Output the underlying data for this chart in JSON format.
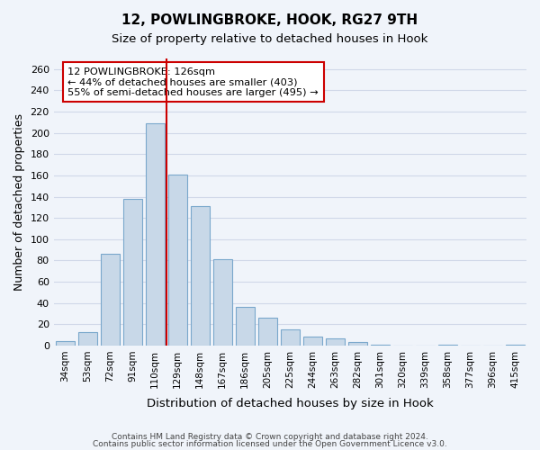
{
  "title": "12, POWLINGBROKE, HOOK, RG27 9TH",
  "subtitle": "Size of property relative to detached houses in Hook",
  "xlabel": "Distribution of detached houses by size in Hook",
  "ylabel": "Number of detached properties",
  "bar_color": "#c8d8e8",
  "bar_edge_color": "#7aa8cc",
  "categories": [
    "34sqm",
    "53sqm",
    "72sqm",
    "91sqm",
    "110sqm",
    "129sqm",
    "148sqm",
    "167sqm",
    "186sqm",
    "205sqm",
    "225sqm",
    "244sqm",
    "263sqm",
    "282sqm",
    "301sqm",
    "320sqm",
    "339sqm",
    "358sqm",
    "377sqm",
    "396sqm",
    "415sqm"
  ],
  "values": [
    4,
    13,
    86,
    138,
    209,
    161,
    131,
    81,
    36,
    26,
    15,
    8,
    7,
    3,
    1,
    0,
    0,
    1,
    0,
    0,
    1
  ],
  "vline_x": 5,
  "vline_color": "#cc0000",
  "annotation_title": "12 POWLINGBROKE: 126sqm",
  "annotation_line1": "← 44% of detached houses are smaller (403)",
  "annotation_line2": "55% of semi-detached houses are larger (495) →",
  "annotation_box_color": "white",
  "annotation_box_edge": "#cc0000",
  "ylim": [
    0,
    270
  ],
  "yticks": [
    0,
    20,
    40,
    60,
    80,
    100,
    120,
    140,
    160,
    180,
    200,
    220,
    240,
    260
  ],
  "footer_line1": "Contains HM Land Registry data © Crown copyright and database right 2024.",
  "footer_line2": "Contains public sector information licensed under the Open Government Licence v3.0.",
  "grid_color": "#d0d8e8",
  "background_color": "#f0f4fa"
}
